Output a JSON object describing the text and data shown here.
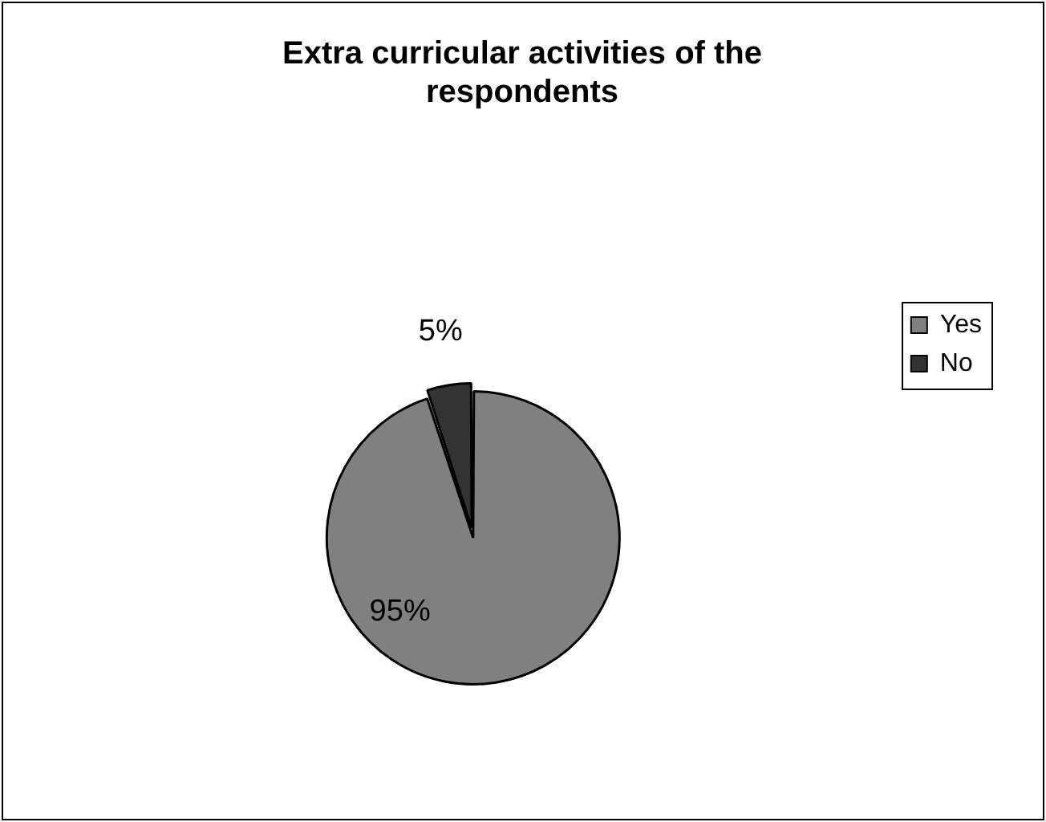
{
  "chart_data": {
    "type": "pie",
    "title": "Extra curricular activities of the respondents",
    "categories": [
      "Yes",
      "No"
    ],
    "values": [
      95,
      5
    ],
    "colors": [
      "#808080",
      "#333333"
    ],
    "value_labels": [
      "95%",
      "5%"
    ],
    "legend": "right"
  }
}
